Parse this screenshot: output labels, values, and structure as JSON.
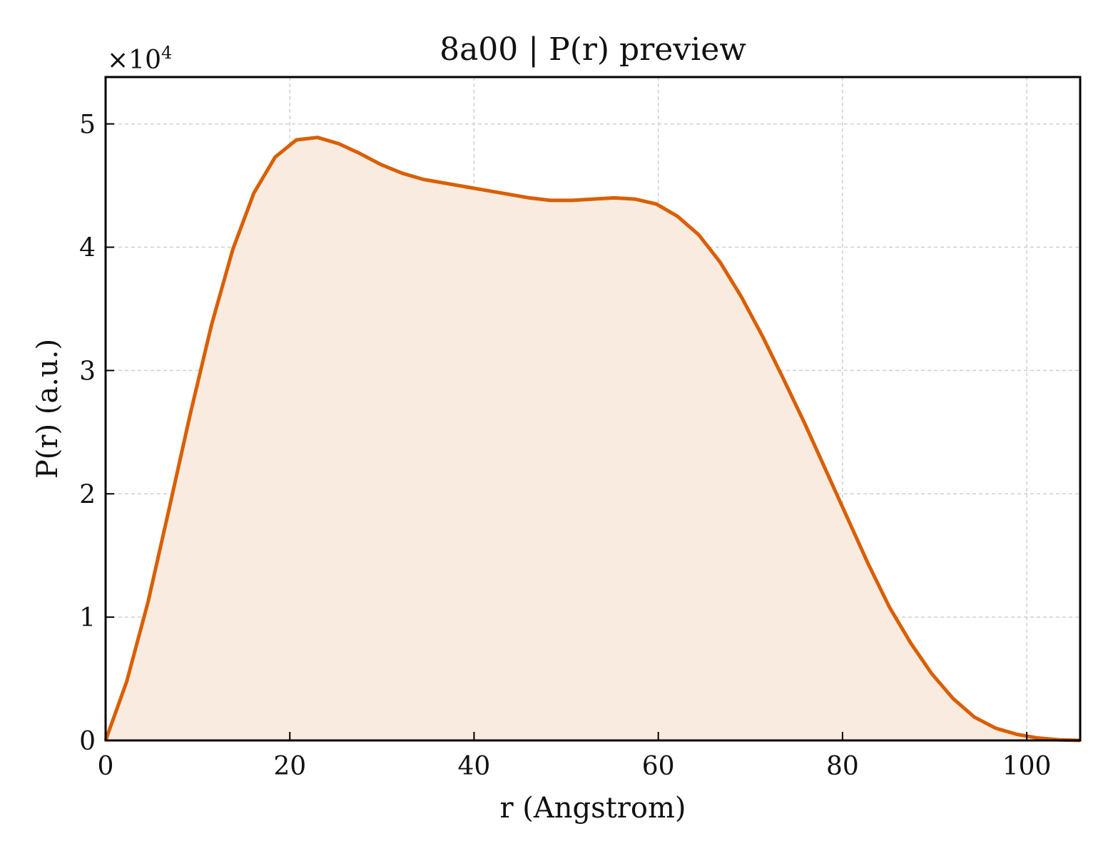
{
  "chart_data": {
    "type": "area",
    "title": "8a00 | P(r) preview",
    "xlabel": "r (Angstrom)",
    "ylabel": "P(r) (a.u.)",
    "y_multiplier_base": "×10",
    "y_multiplier_exp": "4",
    "xlim": [
      0,
      105.8
    ],
    "ylim": [
      0,
      5.38
    ],
    "grid": true,
    "x_ticks": [
      0,
      20,
      40,
      60,
      80,
      100
    ],
    "y_ticks": [
      0,
      1,
      2,
      3,
      4,
      5
    ],
    "x_tick_labels": [
      "0",
      "20",
      "40",
      "60",
      "80",
      "100"
    ],
    "y_tick_labels": [
      "0",
      "1",
      "2",
      "3",
      "4",
      "5"
    ],
    "colors": {
      "line": "#d95f02",
      "fill": "#f9ebe0",
      "grid": "#cfcfcf"
    },
    "x": [
      0,
      2.3,
      4.6,
      6.9,
      9.2,
      11.5,
      13.8,
      16.1,
      18.4,
      20.7,
      23.0,
      25.3,
      27.6,
      29.9,
      32.2,
      34.5,
      36.8,
      39.1,
      41.4,
      43.7,
      46.0,
      48.3,
      50.6,
      52.9,
      55.2,
      57.5,
      59.8,
      62.1,
      64.4,
      66.7,
      69.0,
      71.3,
      73.6,
      75.9,
      78.2,
      80.5,
      82.8,
      85.1,
      87.4,
      89.7,
      92.0,
      94.3,
      96.6,
      98.9,
      101.2,
      103.5,
      105.8
    ],
    "series": [
      {
        "values": [
          0.0,
          0.48,
          1.12,
          1.88,
          2.65,
          3.37,
          3.98,
          4.44,
          4.73,
          4.87,
          4.89,
          4.84,
          4.76,
          4.67,
          4.6,
          4.55,
          4.52,
          4.49,
          4.46,
          4.43,
          4.4,
          4.38,
          4.38,
          4.39,
          4.4,
          4.39,
          4.35,
          4.25,
          4.1,
          3.88,
          3.6,
          3.28,
          2.93,
          2.57,
          2.19,
          1.81,
          1.43,
          1.08,
          0.79,
          0.54,
          0.34,
          0.19,
          0.1,
          0.05,
          0.02,
          0.005,
          0.0
        ]
      }
    ]
  }
}
